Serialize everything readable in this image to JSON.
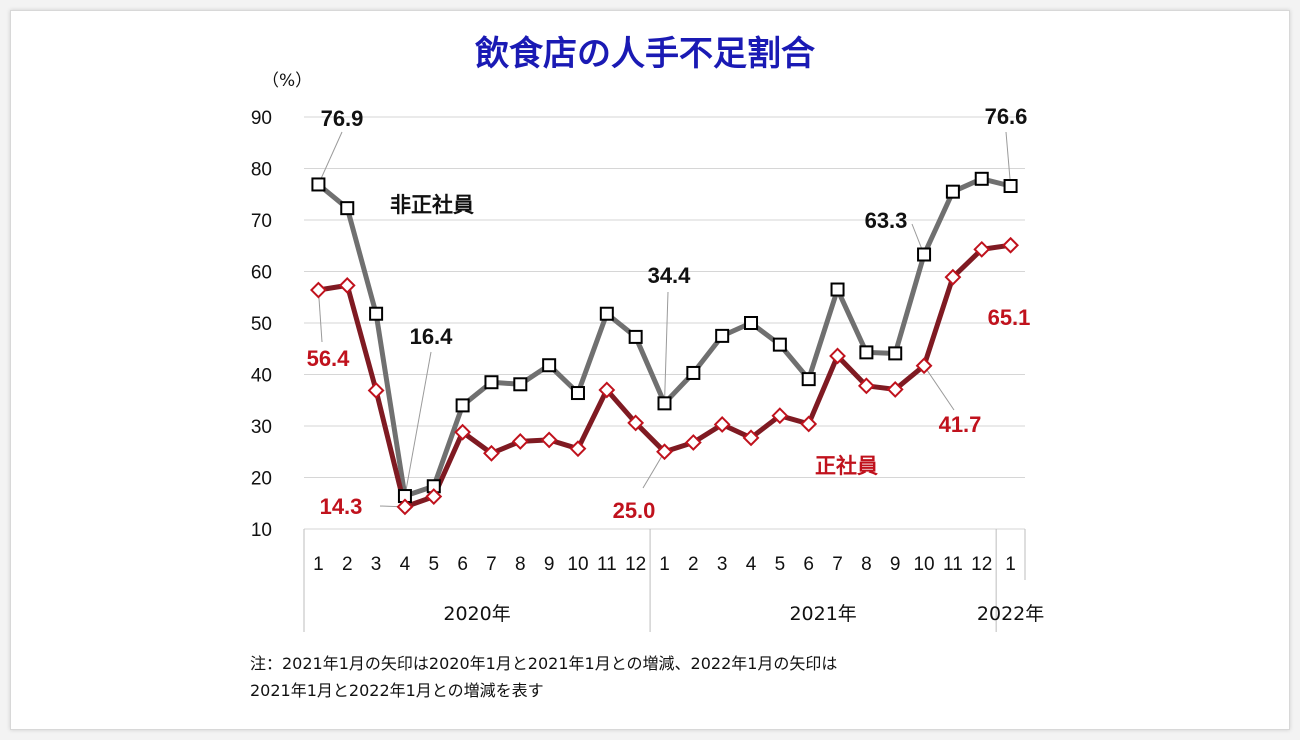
{
  "chart_data": {
    "type": "line",
    "title": "飲食店の人手不足割合",
    "y_unit": "（%）",
    "ylim": [
      10,
      90
    ],
    "y_ticks": [
      10,
      20,
      30,
      40,
      50,
      60,
      70,
      80,
      90
    ],
    "grid": true,
    "categories": [
      "1",
      "2",
      "3",
      "4",
      "5",
      "6",
      "7",
      "8",
      "9",
      "10",
      "11",
      "12",
      "1",
      "2",
      "3",
      "4",
      "5",
      "6",
      "7",
      "8",
      "9",
      "10",
      "11",
      "12",
      "1"
    ],
    "year_groups": [
      {
        "label": "2020年",
        "count": 12
      },
      {
        "label": "2021年",
        "count": 12
      },
      {
        "label": "2022年",
        "count": 1
      }
    ],
    "series": [
      {
        "name": "非正社員",
        "color": "#707070",
        "marker": "square",
        "values": [
          76.9,
          72.3,
          51.8,
          16.4,
          18.3,
          34.0,
          38.5,
          38.1,
          41.8,
          36.4,
          51.8,
          47.3,
          34.4,
          40.3,
          47.5,
          50.0,
          45.8,
          39.1,
          56.5,
          44.3,
          44.1,
          63.3,
          75.5,
          78.0,
          76.6
        ]
      },
      {
        "name": "正社員",
        "color": "#7f1a22",
        "marker": "diamond",
        "values": [
          56.4,
          57.3,
          36.9,
          14.3,
          16.3,
          28.8,
          24.7,
          27.0,
          27.3,
          25.6,
          37.0,
          30.6,
          25.0,
          26.8,
          30.3,
          27.7,
          32.0,
          30.4,
          43.6,
          37.8,
          37.1,
          41.7,
          58.9,
          64.3,
          65.1
        ]
      }
    ],
    "annotations": {
      "ns": [
        "76.9",
        "16.4",
        "34.4",
        "63.3",
        "76.6"
      ],
      "s": [
        "56.4",
        "14.3",
        "25.0",
        "41.7",
        "65.1"
      ]
    },
    "note_line1": "注：2021年1月の矢印は2020年1月と2021年1月との増減、2022年1月の矢印は",
    "note_line2": "2021年1月と2022年1月との増減を表す"
  }
}
